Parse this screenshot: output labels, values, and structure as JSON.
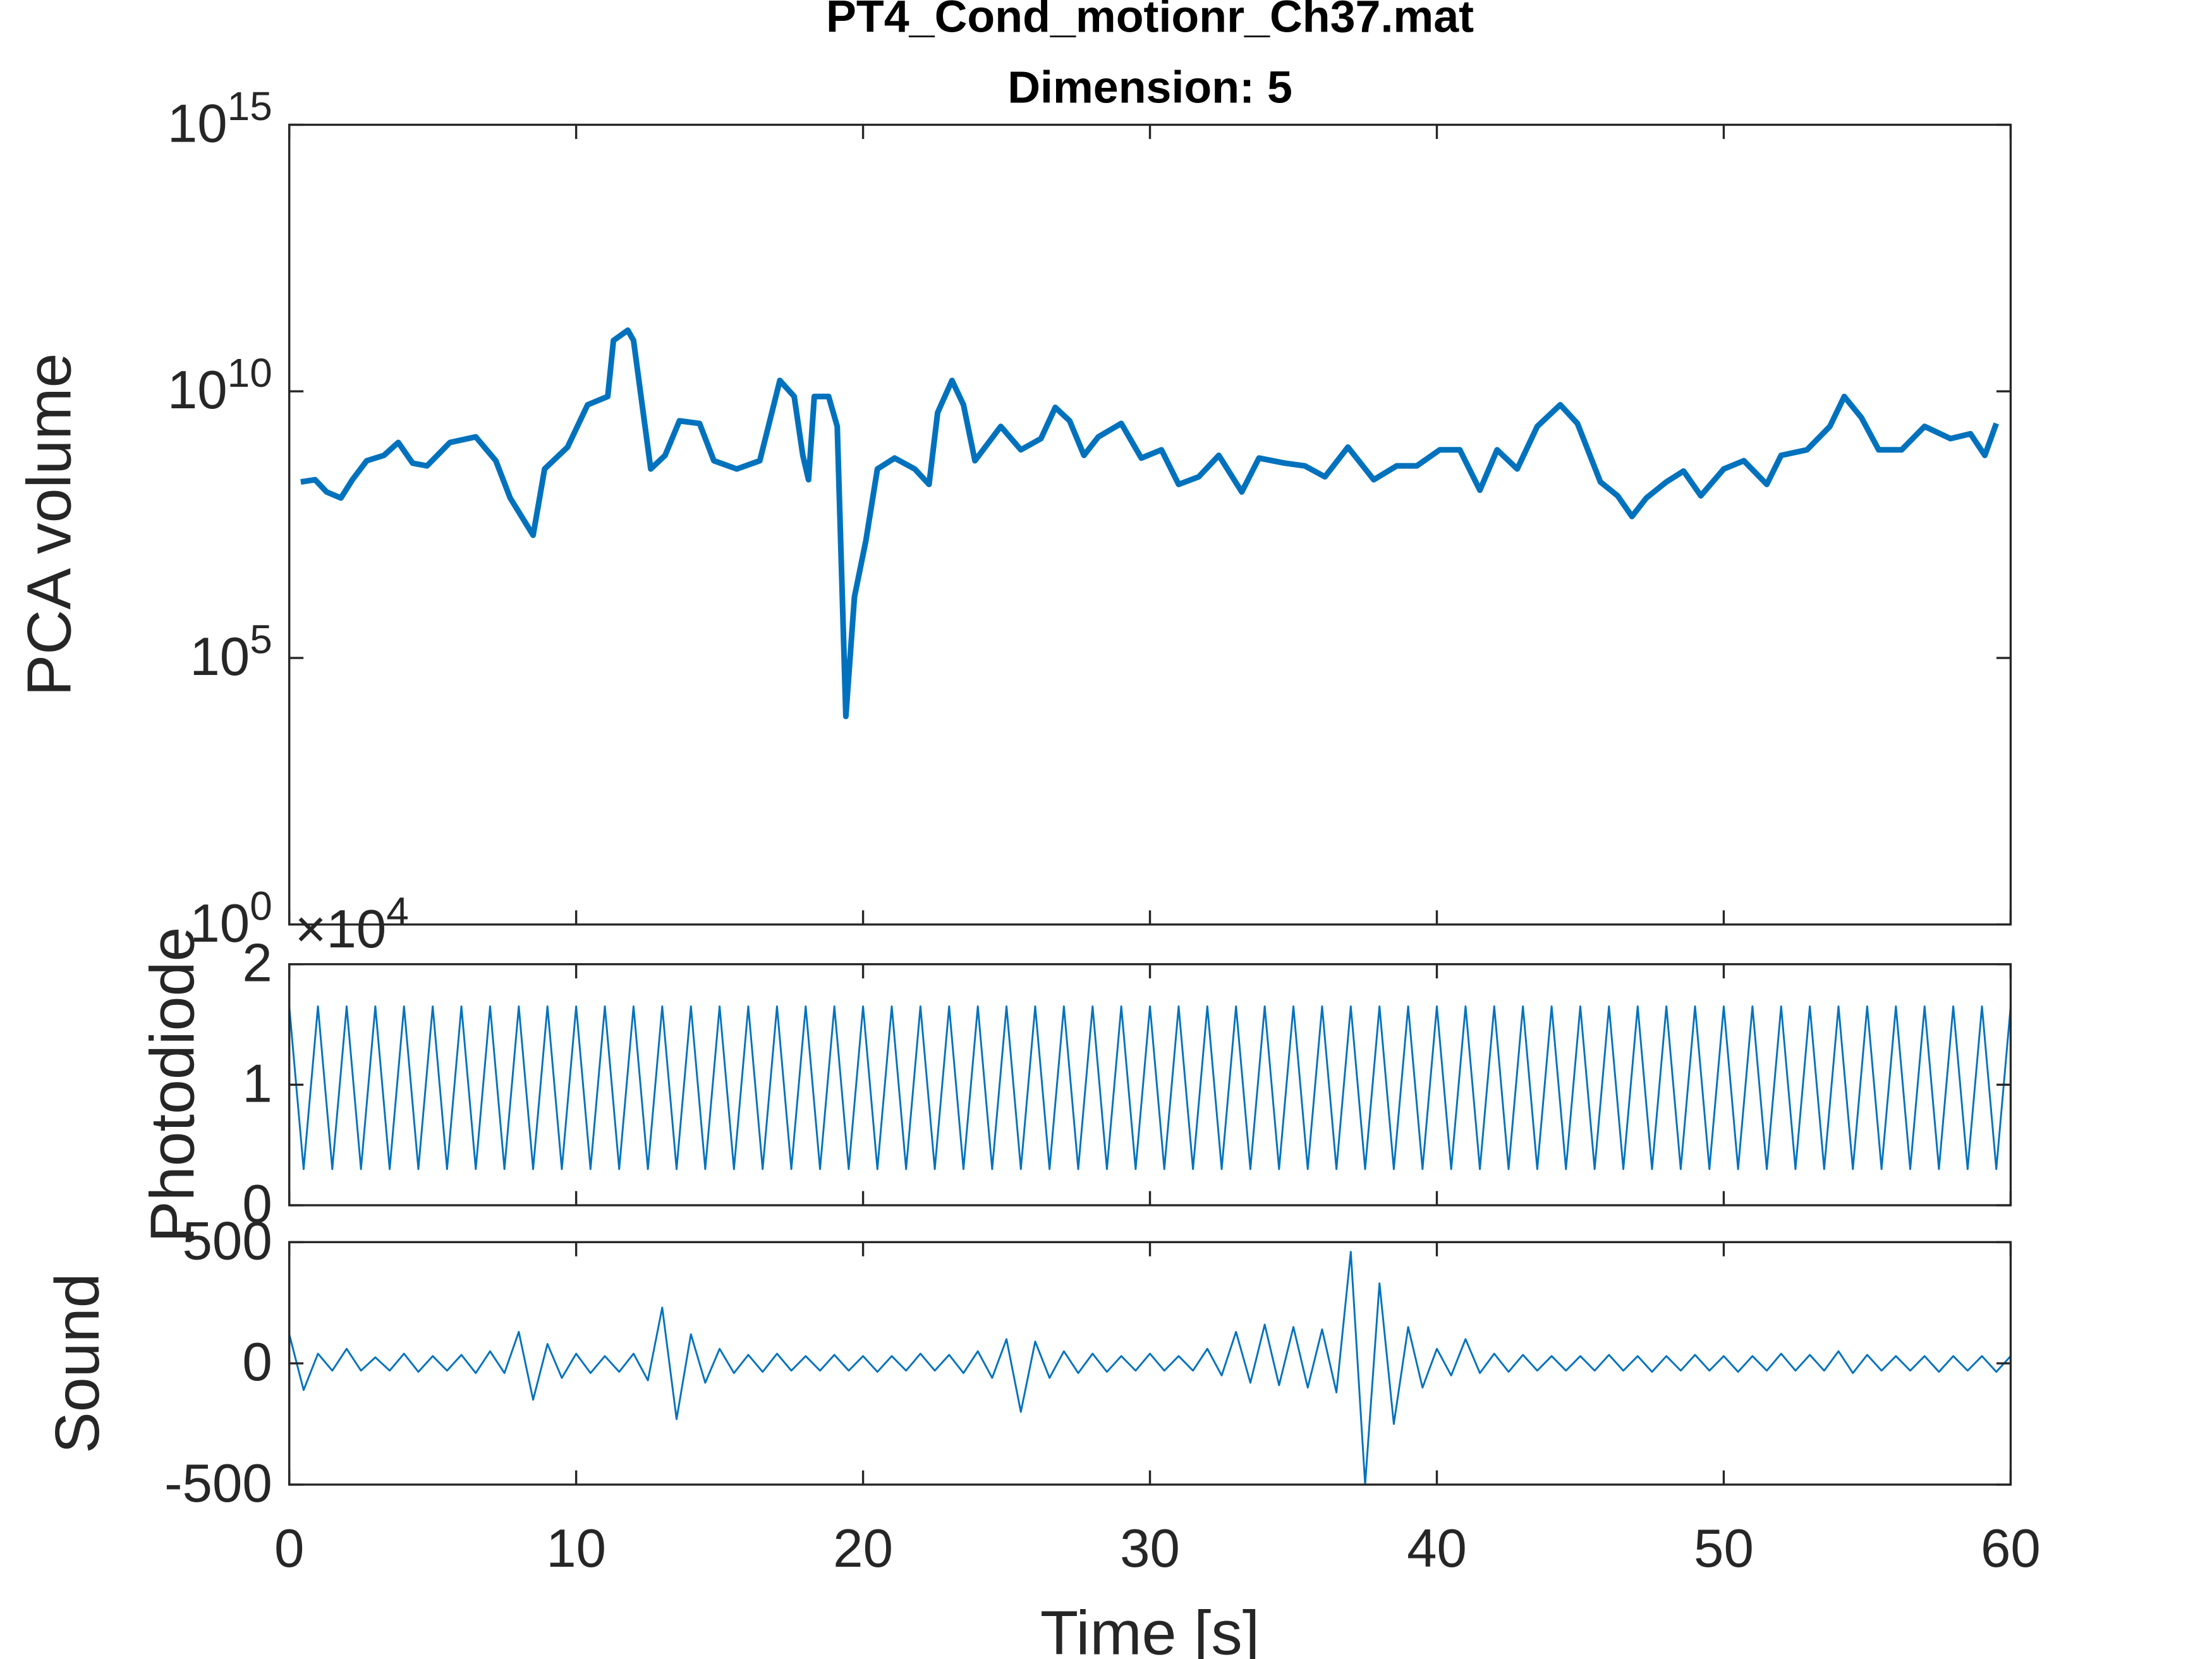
{
  "chart_data": [
    {
      "type": "line",
      "title": "PT4_Cond_motionr_Ch37.mat",
      "subtitle": "Dimension: 5",
      "ylabel": "PCA volume",
      "log_y": true,
      "color": "#0072bd",
      "xlim": [
        0,
        60
      ],
      "xticks": [
        0,
        10,
        20,
        30,
        40,
        50,
        60
      ],
      "ylim": [
        1,
        1000000000000000.0
      ],
      "yticks": [
        {
          "value": 1,
          "label": "10^0"
        },
        {
          "value": 100000,
          "label": "10^5"
        },
        {
          "value": 10000000000,
          "label": "10^10"
        },
        {
          "value": 1000000000000000,
          "label": "10^15"
        }
      ],
      "x": [
        0.4,
        0.9,
        1.3,
        1.8,
        2.2,
        2.7,
        3.3,
        3.8,
        4.3,
        4.8,
        5.6,
        6.5,
        7.2,
        7.7,
        8.5,
        8.9,
        9.7,
        10.4,
        11.1,
        11.3,
        11.8,
        12.0,
        12.3,
        12.6,
        13.1,
        13.6,
        14.3,
        14.8,
        15.6,
        16.4,
        16.7,
        17.1,
        17.6,
        17.9,
        18.1,
        18.3,
        18.8,
        19.1,
        19.4,
        19.7,
        20.1,
        20.5,
        21.1,
        21.8,
        22.3,
        22.6,
        23.1,
        23.5,
        23.9,
        24.8,
        25.5,
        26.2,
        26.7,
        27.2,
        27.7,
        28.2,
        29.0,
        29.7,
        30.4,
        31.0,
        31.7,
        32.4,
        33.2,
        33.8,
        34.7,
        35.4,
        36.1,
        36.9,
        37.8,
        38.6,
        39.3,
        40.1,
        40.8,
        41.5,
        42.1,
        42.8,
        43.5,
        44.3,
        44.9,
        45.7,
        46.3,
        46.8,
        47.3,
        48.0,
        48.6,
        49.2,
        50.0,
        50.7,
        51.5,
        52.0,
        52.9,
        53.7,
        54.2,
        54.8,
        55.4,
        56.2,
        57.0,
        57.9,
        58.6,
        59.1,
        59.5
      ],
      "values": [
        200000000.0,
        220000000.0,
        130000000.0,
        100000000.0,
        220000000.0,
        500000000.0,
        630000000.0,
        1100000000.0,
        450000000.0,
        400000000.0,
        1100000000.0,
        1400000000.0,
        500000000.0,
        100000000.0,
        20000000.0,
        350000000.0,
        900000000.0,
        5600000000.0,
        8000000000.0,
        90000000000.0,
        140000000000.0,
        90000000000.0,
        5600000000.0,
        350000000.0,
        630000000.0,
        2800000000.0,
        2500000000.0,
        500000000.0,
        350000000.0,
        500000000.0,
        2200000000.0,
        16000000000.0,
        8000000000.0,
        630000000.0,
        220000000.0,
        8000000000.0,
        8000000000.0,
        2200000000.0,
        8000.0,
        1400000.0,
        16000000.0,
        350000000.0,
        560000000.0,
        350000000.0,
        180000000.0,
        4000000000.0,
        16000000000.0,
        5600000000.0,
        500000000.0,
        2200000000.0,
        800000000.0,
        1300000000.0,
        5000000000.0,
        2800000000.0,
        630000000.0,
        1400000000.0,
        2500000000.0,
        560000000.0,
        800000000.0,
        180000000.0,
        250000000.0,
        630000000.0,
        130000000.0,
        560000000.0,
        450000000.0,
        400000000.0,
        250000000.0,
        900000000.0,
        220000000.0,
        400000000.0,
        400000000.0,
        800000000.0,
        800000000.0,
        140000000.0,
        800000000.0,
        350000000.0,
        2200000000.0,
        5600000000.0,
        2500000000.0,
        200000000.0,
        110000000.0,
        45000000.0,
        100000000.0,
        200000000.0,
        320000000.0,
        110000000.0,
        350000000.0,
        500000000.0,
        180000000.0,
        630000000.0,
        800000000.0,
        2200000000.0,
        8000000000.0,
        3200000000.0,
        800000000.0,
        800000000.0,
        2200000000.0,
        1300000000.0,
        1600000000.0,
        630000000.0,
        2500000000.0
      ]
    },
    {
      "type": "line",
      "ylabel": "Photodiode",
      "exponent_label": "×10^4",
      "color": "#0072bd",
      "xlim": [
        0,
        60
      ],
      "xticks": [
        0,
        10,
        20,
        30,
        40,
        50,
        60
      ],
      "ylim": [
        0,
        20000
      ],
      "yticks": [
        0,
        {
          "value": 10000,
          "label": "1"
        },
        {
          "value": 20000,
          "label": "2"
        }
      ],
      "x": [
        0,
        0.5,
        1,
        1.5,
        2,
        2.5,
        3,
        3.5,
        4,
        4.5,
        5,
        5.5,
        6,
        6.5,
        7,
        7.5,
        8,
        8.5,
        9,
        9.5,
        10,
        10.5,
        11,
        11.5,
        12,
        12.5,
        13,
        13.5,
        14,
        14.5,
        15,
        15.5,
        16,
        16.5,
        17,
        17.5,
        18,
        18.5,
        19,
        19.5,
        20,
        20.5,
        21,
        21.5,
        22,
        22.5,
        23,
        23.5,
        24,
        24.5,
        25,
        25.5,
        26,
        26.5,
        27,
        27.5,
        28,
        28.5,
        29,
        29.5,
        30,
        30.5,
        31,
        31.5,
        32,
        32.5,
        33,
        33.5,
        34,
        34.5,
        35,
        35.5,
        36,
        36.5,
        37,
        37.5,
        38,
        38.5,
        39,
        39.5,
        40,
        40.5,
        41,
        41.5,
        42,
        42.5,
        43,
        43.5,
        44,
        44.5,
        45,
        45.5,
        46,
        46.5,
        47,
        47.5,
        48,
        48.5,
        49,
        49.5,
        50,
        50.5,
        51,
        51.5,
        52,
        52.5,
        53,
        53.5,
        54,
        54.5,
        55,
        55.5,
        56,
        56.5,
        57,
        57.5,
        58,
        58.5,
        59,
        59.5,
        60
      ],
      "values": [
        16500,
        3000,
        16500,
        3000,
        16500,
        3000,
        16500,
        3000,
        16500,
        3000,
        16500,
        3000,
        16500,
        3000,
        16500,
        3000,
        16500,
        3000,
        16500,
        3000,
        16500,
        3000,
        16500,
        3000,
        16500,
        3000,
        16500,
        3000,
        16500,
        3000,
        16500,
        3000,
        16500,
        3000,
        16500,
        3000,
        16500,
        3000,
        16500,
        3000,
        16500,
        3000,
        16500,
        3000,
        16500,
        3000,
        16500,
        3000,
        16500,
        3000,
        16500,
        3000,
        16500,
        3000,
        16500,
        3000,
        16500,
        3000,
        16500,
        3000,
        16500,
        3000,
        16500,
        3000,
        16500,
        3000,
        16500,
        3000,
        16500,
        3000,
        16500,
        3000,
        16500,
        3000,
        16500,
        3000,
        16500,
        3000,
        16500,
        3000,
        16500,
        3000,
        16500,
        3000,
        16500,
        3000,
        16500,
        3000,
        16500,
        3000,
        16500,
        3000,
        16500,
        3000,
        16500,
        3000,
        16500,
        3000,
        16500,
        3000,
        16500,
        3000,
        16500,
        3000,
        16500,
        3000,
        16500,
        3000,
        16500,
        3000,
        16500,
        3000,
        16500,
        3000,
        16500,
        3000,
        16500,
        3000,
        16500,
        3000,
        16500
      ]
    },
    {
      "type": "line",
      "ylabel": "Sound",
      "xlabel": "Time [s]",
      "color": "#0072bd",
      "xlim": [
        0,
        60
      ],
      "xticks": [
        0,
        10,
        20,
        30,
        40,
        50,
        60
      ],
      "ylim": [
        -500,
        500
      ],
      "yticks": [
        -500,
        0,
        500
      ],
      "x": [
        0,
        0.5,
        1,
        1.5,
        2,
        2.5,
        3,
        3.5,
        4,
        4.5,
        5,
        5.5,
        6,
        6.5,
        7,
        7.5,
        8,
        8.5,
        9,
        9.5,
        10,
        10.5,
        11,
        11.5,
        12,
        12.5,
        13,
        13.5,
        14,
        14.5,
        15,
        15.5,
        16,
        16.5,
        17,
        17.5,
        18,
        18.5,
        19,
        19.5,
        20,
        20.5,
        21,
        21.5,
        22,
        22.5,
        23,
        23.5,
        24,
        24.5,
        25,
        25.5,
        26,
        26.5,
        27,
        27.5,
        28,
        28.5,
        29,
        29.5,
        30,
        30.5,
        31,
        31.5,
        32,
        32.5,
        33,
        33.5,
        34,
        34.5,
        35,
        35.5,
        36,
        36.5,
        37,
        37.5,
        38,
        38.5,
        39,
        39.5,
        40,
        40.5,
        41,
        41.5,
        42,
        42.5,
        43,
        43.5,
        44,
        44.5,
        45,
        45.5,
        46,
        46.5,
        47,
        47.5,
        48,
        48.5,
        49,
        49.5,
        50,
        50.5,
        51,
        51.5,
        52,
        52.5,
        53,
        53.5,
        54,
        54.5,
        55,
        55.5,
        56,
        56.5,
        57,
        57.5,
        58,
        58.5,
        59,
        59.5,
        60
      ],
      "values": [
        120,
        -110,
        40,
        -30,
        60,
        -30,
        25,
        -30,
        40,
        -35,
        30,
        -30,
        35,
        -40,
        50,
        -40,
        130,
        -150,
        80,
        -60,
        40,
        -40,
        30,
        -35,
        40,
        -70,
        230,
        -230,
        120,
        -80,
        60,
        -40,
        35,
        -35,
        40,
        -30,
        30,
        -30,
        35,
        -30,
        30,
        -35,
        30,
        -30,
        40,
        -30,
        35,
        -40,
        50,
        -60,
        100,
        -200,
        90,
        -60,
        50,
        -40,
        40,
        -35,
        30,
        -30,
        40,
        -30,
        30,
        -30,
        60,
        -50,
        130,
        -80,
        160,
        -90,
        150,
        -100,
        140,
        -120,
        460,
        -500,
        330,
        -250,
        150,
        -100,
        60,
        -50,
        100,
        -40,
        40,
        -35,
        35,
        -30,
        30,
        -30,
        30,
        -30,
        35,
        -30,
        30,
        -35,
        30,
        -30,
        35,
        -30,
        30,
        -35,
        30,
        -30,
        40,
        -30,
        35,
        -30,
        50,
        -40,
        35,
        -30,
        30,
        -30,
        30,
        -35,
        30,
        -30,
        30,
        -35,
        30
      ]
    }
  ]
}
